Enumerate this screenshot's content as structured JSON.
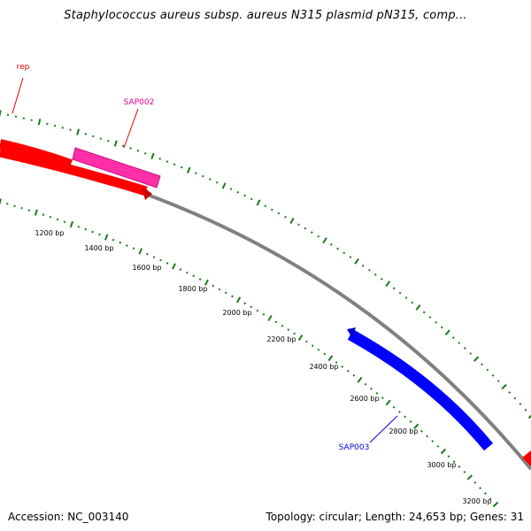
{
  "title": "Staphylococcus aureus subsp. aureus N315 plasmid pN315, comp...",
  "footer": {
    "accession": "Accession: NC_003140",
    "summary": "Topology: circular; Length: 24,653 bp; Genes: 31"
  },
  "ruler_labels": [
    "1200 bp",
    "1400 bp",
    "1600 bp",
    "1800 bp",
    "2000 bp",
    "2200 bp",
    "2400 bp",
    "2600 bp",
    "2800 bp",
    "3000 bp",
    "3200 bp"
  ],
  "genes": [
    {
      "name": "rep",
      "color": "#e60000"
    },
    {
      "name": "SAP002",
      "color": "#e6008a"
    },
    {
      "name": "SAP003",
      "color": "#0000dd"
    }
  ],
  "colors": {
    "backbone": "#808080",
    "ruler": "#1a7a1a",
    "rep": "#ff0000",
    "sap002": "#ff2fa8",
    "sap003": "#0000ff"
  }
}
